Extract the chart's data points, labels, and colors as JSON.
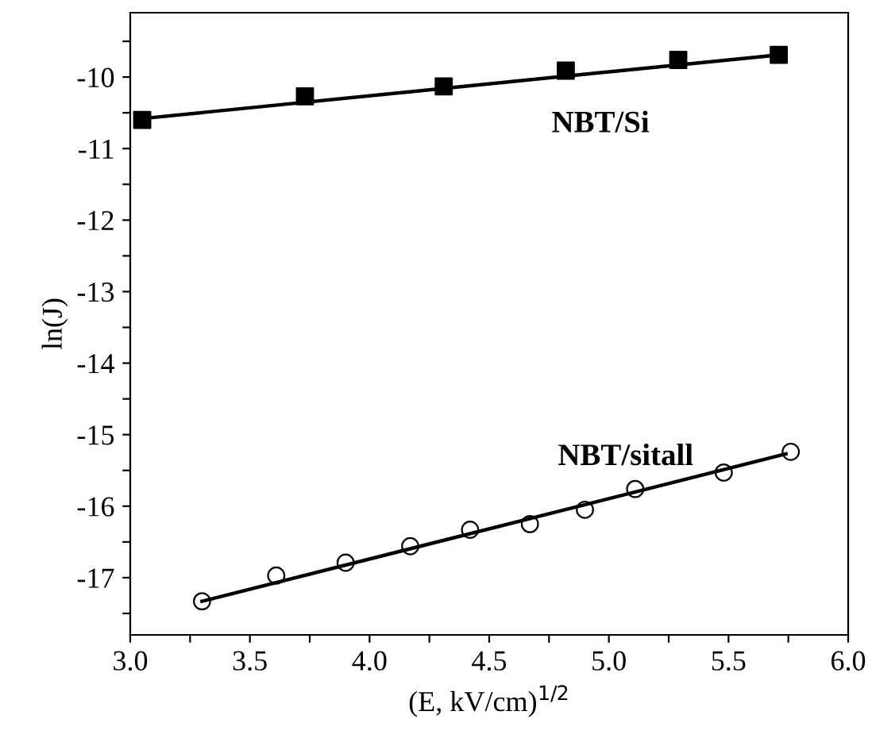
{
  "chart_data": {
    "type": "scatter",
    "xlabel": "(E, kV/cm)$^{1/2}$",
    "ylabel": "ln(J)",
    "xlim": [
      3.0,
      6.0
    ],
    "ylim": [
      -17.8,
      -9.1
    ],
    "xticks": [
      {
        "value": 3.0,
        "label": "3.0"
      },
      {
        "value": 3.25,
        "label": null
      },
      {
        "value": 3.5,
        "label": "3.5"
      },
      {
        "value": 3.75,
        "label": null
      },
      {
        "value": 4.0,
        "label": "4.0"
      },
      {
        "value": 4.25,
        "label": null
      },
      {
        "value": 4.5,
        "label": "4.5"
      },
      {
        "value": 4.75,
        "label": null
      },
      {
        "value": 5.0,
        "label": "5.0"
      },
      {
        "value": 5.25,
        "label": null
      },
      {
        "value": 5.5,
        "label": "5.5"
      },
      {
        "value": 5.75,
        "label": null
      },
      {
        "value": 6.0,
        "label": "6.0"
      }
    ],
    "yticks": [
      {
        "value": -17.5,
        "label": null
      },
      -17,
      {
        "value": -16.5,
        "label": null
      },
      -16,
      {
        "value": -15.5,
        "label": null
      },
      -15,
      {
        "value": -14.5,
        "label": null
      },
      -14,
      {
        "value": -13.5,
        "label": null
      },
      -13,
      {
        "value": -12.5,
        "label": null
      },
      -12,
      {
        "value": -11.5,
        "label": null
      },
      -11,
      {
        "value": -10.5,
        "label": null
      },
      -10,
      {
        "value": -9.5,
        "label": null
      }
    ],
    "grid": false,
    "legend": false,
    "series": [
      {
        "marker": "square",
        "color": "#000000",
        "x": [
          3.05,
          3.73,
          4.31,
          4.82,
          5.29,
          5.71
        ],
        "values": [
          -10.6,
          -10.27,
          -10.13,
          -9.91,
          -9.76,
          -9.69
        ]
      },
      {
        "type": "line",
        "marker": "none",
        "color": "#000000",
        "x": [
          3.05,
          5.71
        ],
        "values": [
          -10.58,
          -9.69
        ]
      },
      {
        "marker": "circle",
        "color": "#000000",
        "x": [
          3.3,
          3.61,
          3.9,
          4.17,
          4.42,
          4.67,
          4.9,
          5.11,
          5.48,
          5.76
        ],
        "values": [
          -17.33,
          -16.97,
          -16.79,
          -16.56,
          -16.33,
          -16.25,
          -16.05,
          -15.76,
          -15.53,
          -15.24
        ]
      },
      {
        "type": "line",
        "marker": "none",
        "color": "#000000",
        "x": [
          3.3,
          5.74
        ],
        "values": [
          -17.33,
          -15.27
        ]
      }
    ],
    "annotations": [
      "NBT/Si",
      "NBT/sitall"
    ]
  }
}
